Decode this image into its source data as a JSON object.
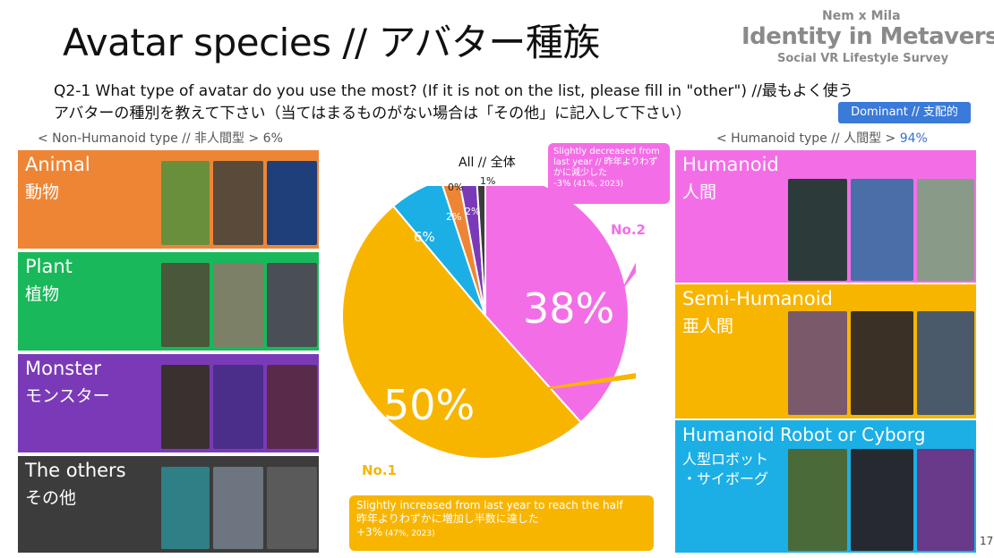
{
  "title": "Avatar species // アバター種族",
  "brand": {
    "line1": "Nem x Mila",
    "line2": "Identity in Metaverse",
    "line3": "Social VR Lifestyle Survey"
  },
  "question": {
    "line1": "Q2-1 What type of avatar do you use the most? (If it is not on the list, please fill in \"other\") //最もよく使う",
    "line2": "アバターの種別を教えて下さい（当てはまるものがない場合は「その他」に記入して下さい）"
  },
  "dominant_badge": "Dominant // 支配的",
  "non_humanoid_header": "< Non-Humanoid type // 非人間型 > 6%",
  "humanoid_header": {
    "text": "< Humanoid type // 人間型 > ",
    "pct": "94%"
  },
  "colors": {
    "humanoid": "#f36ee6",
    "semi_humanoid": "#f8b500",
    "robot": "#1bafe6",
    "animal": "#ee8535",
    "plant": "#19b85a",
    "monster": "#7a3ab8",
    "others": "#3c3c3c"
  },
  "left_panels": [
    {
      "en": "Animal",
      "jp": "動物",
      "color": "#ee8535"
    },
    {
      "en": "Plant",
      "jp": "植物",
      "color": "#19b85a"
    },
    {
      "en": "Monster",
      "jp": "モンスター",
      "color": "#7a3ab8"
    },
    {
      "en": "The others",
      "jp": "その他",
      "color": "#3c3c3c"
    }
  ],
  "right_panels": [
    {
      "en": "Humanoid",
      "jp": "人間",
      "color": "#f36ee6"
    },
    {
      "en": "Semi-Humanoid",
      "jp": "亜人間",
      "color": "#f8b500"
    },
    {
      "en": "Humanoid Robot or Cyborg",
      "jp": "人型ロボット",
      "jp2": "・サイボーグ",
      "color": "#1bafe6"
    }
  ],
  "chart_data": {
    "type": "pie",
    "title": "All // 全体",
    "slices": [
      {
        "name": "Humanoid",
        "label": "38%",
        "value": 38,
        "color": "#f36ee6"
      },
      {
        "name": "Semi-Humanoid",
        "label": "50%",
        "value": 50,
        "color": "#f8b500"
      },
      {
        "name": "Humanoid Robot or Cyborg",
        "label": "6%",
        "value": 6,
        "color": "#1bafe6"
      },
      {
        "name": "Animal",
        "label": "2%",
        "value": 2,
        "color": "#ee8535"
      },
      {
        "name": "Plant",
        "label": "0%",
        "value": 0,
        "color": "#19b85a"
      },
      {
        "name": "Monster",
        "label": "2%",
        "value": 2,
        "color": "#7a3ab8"
      },
      {
        "name": "The others",
        "label": "1%",
        "value": 1,
        "color": "#3c3c3c"
      }
    ],
    "rank_labels": {
      "no1": "No.1",
      "no2": "No.2"
    }
  },
  "callouts": {
    "top": {
      "line1": "Slightly decreased from",
      "line2": "last year // 昨年よりわず",
      "line3": "かに減少した",
      "change": "-3%",
      "detail": " (41%, 2023)"
    },
    "bottom": {
      "line1": "Slightly increased from last year to reach the half",
      "line2": "昨年よりわずかに増加し半数に達した",
      "change": "+3%",
      "detail": " (47%, 2023)"
    }
  },
  "page_number": "17"
}
